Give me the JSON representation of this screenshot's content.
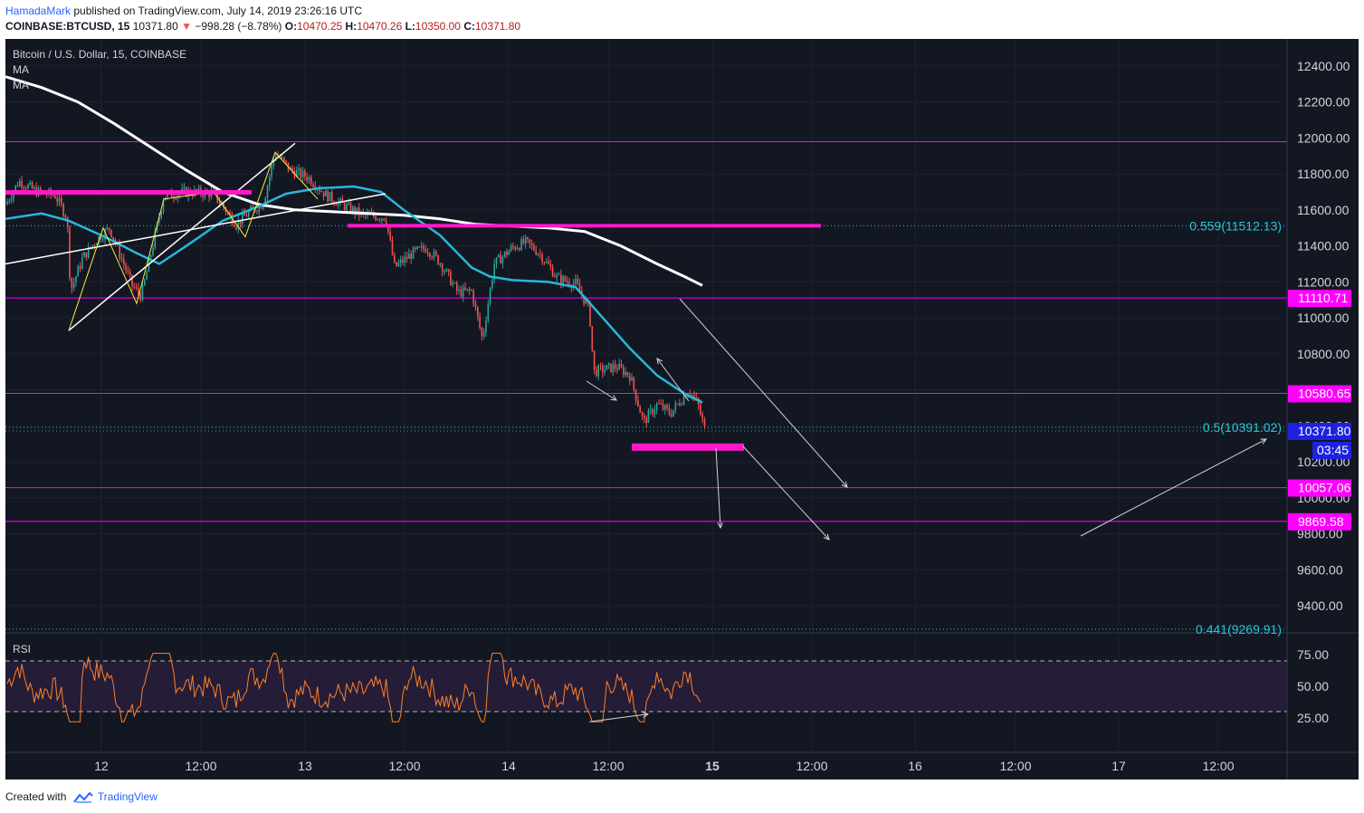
{
  "header": {
    "author": "HamadaMark",
    "published_text": "published on TradingView.com, July 14, 2019 23:26:16 UTC",
    "symbol_line": "COINBASE:BTCUSD, 15",
    "last_price": "10371.80",
    "change": "−998.28 (−8.78%)",
    "o_label": "O:",
    "o_value": "10470.25",
    "h_label": "H:",
    "h_value": "10470.26",
    "l_label": "L:",
    "l_value": "10350.00",
    "c_label": "C:",
    "c_value": "10371.80"
  },
  "chart_data": {
    "type": "candlestick",
    "title": "Bitcoin / U.S. Dollar, 15, COINBASE",
    "indicators": [
      "MA",
      "MA"
    ],
    "ylim": [
      9250,
      12550
    ],
    "y_ticks": [
      9400,
      9600,
      9800,
      10000,
      10200,
      10400,
      10600,
      10800,
      11000,
      11200,
      11400,
      11600,
      11800,
      12000,
      12200,
      12400
    ],
    "y_tick_labels": [
      "9400.00",
      "9600.00",
      "9800.00",
      "10000.00",
      "10200.00",
      "10400.00",
      "10600.00",
      "10800.00",
      "11000.00",
      "11200.00",
      "11400.00",
      "11600.00",
      "11800.00",
      "12000.00",
      "12200.00",
      "12400.00"
    ],
    "x_ticks": [
      "12",
      "12:00",
      "13",
      "12:00",
      "14",
      "12:00",
      "15",
      "12:00",
      "16",
      "12:00",
      "17",
      "12:00"
    ],
    "x_ticks_bold": [
      "15"
    ],
    "price_levels": [
      {
        "price": 11979,
        "label": ""
      },
      {
        "price": 11110.71,
        "label": "11110.71"
      },
      {
        "price": 10580.65,
        "label": "10580.65"
      },
      {
        "price": 10057.06,
        "label": "10057.06"
      },
      {
        "price": 9869.58,
        "label": "9869.58"
      }
    ],
    "fib_levels": [
      {
        "price": 11512.13,
        "label": "0.559(11512.13)"
      },
      {
        "price": 10391.02,
        "label": "0.5(10391.02)"
      },
      {
        "price": 9269.91,
        "label": "0.441(9269.91)"
      }
    ],
    "current_price": {
      "price": 10371.8,
      "label": "10371.80",
      "countdown": "03:45"
    },
    "rsi": {
      "label": "RSI",
      "levels": [
        75,
        50,
        25
      ],
      "level_labels": [
        "75.00",
        "50.00",
        "25.00"
      ],
      "band": [
        30,
        70
      ]
    },
    "colors": {
      "background": "#131722",
      "bull": "#26a69a",
      "bear": "#ef5350",
      "ma_fast": "#2ab7d9",
      "ma_slow": "#ffffff",
      "levels": "#ff00ff",
      "fib": "#26c6da",
      "rsi": "#ff7f2a",
      "current": "#1e22e0"
    }
  },
  "footer": {
    "created_with": "Created with",
    "brand": "TradingView"
  }
}
